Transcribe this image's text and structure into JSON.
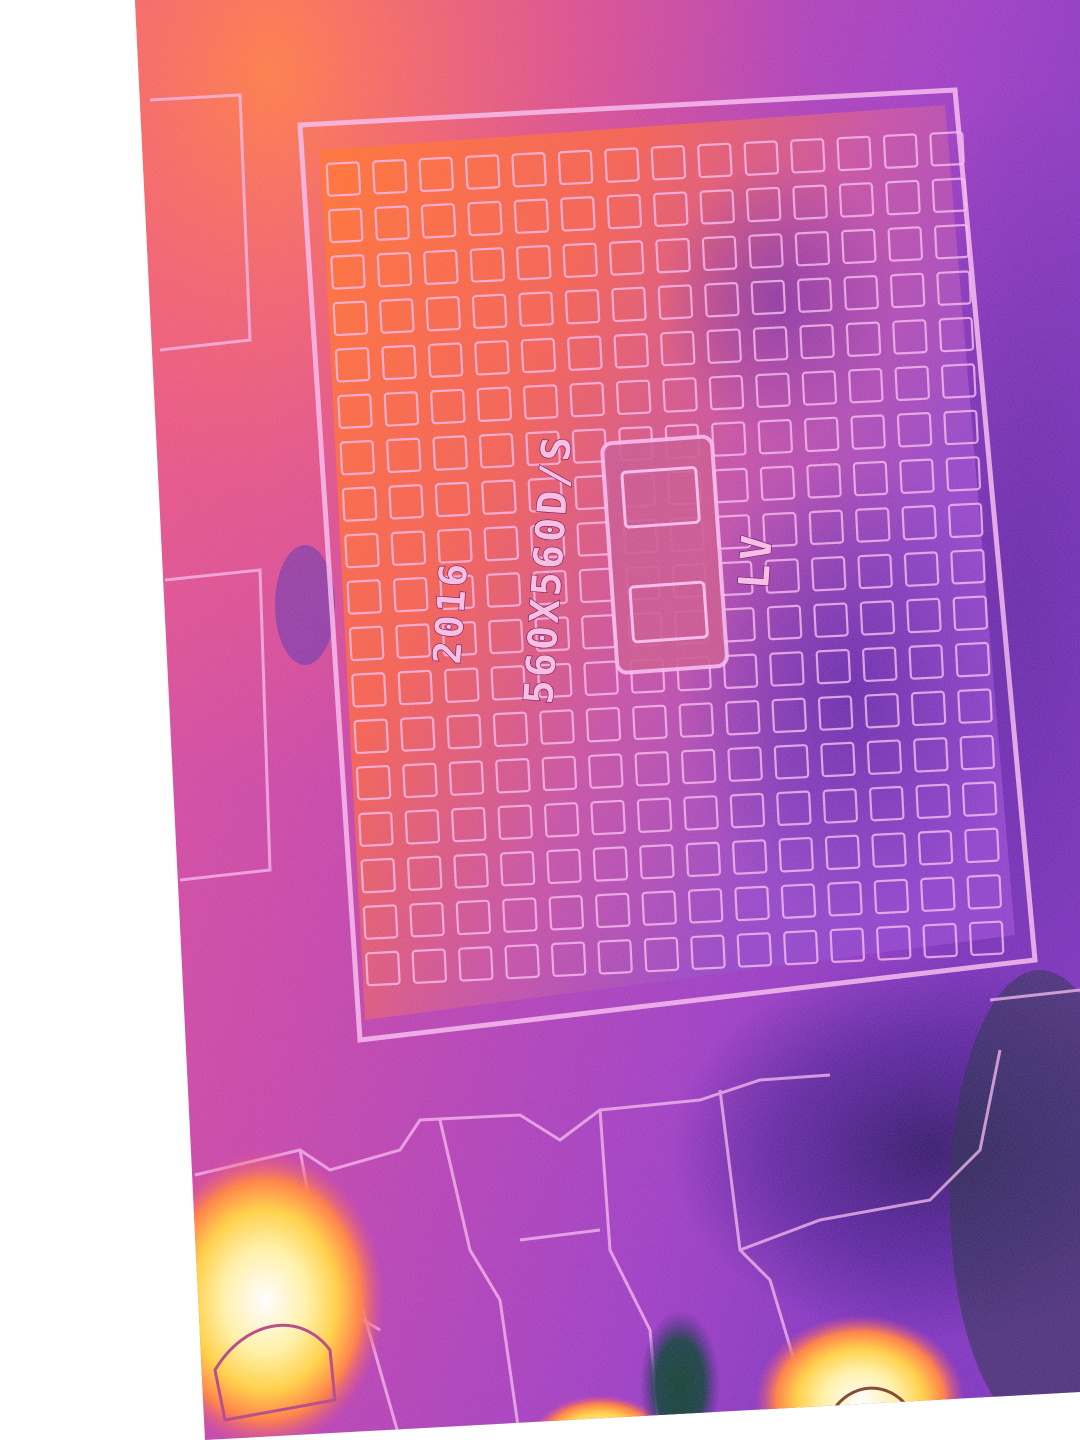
{
  "image": {
    "subject": "thermal-camera-view-of-manhole-cover",
    "palette": [
      "#ff6a2e",
      "#e0447a",
      "#b23ab2",
      "#8a34c4",
      "#5a1fa0",
      "#ffe35a",
      "#ffffff",
      "#0b3a2a"
    ]
  },
  "cover_markings": {
    "year": "2016",
    "size": "560X560D/S",
    "code": "LV"
  }
}
